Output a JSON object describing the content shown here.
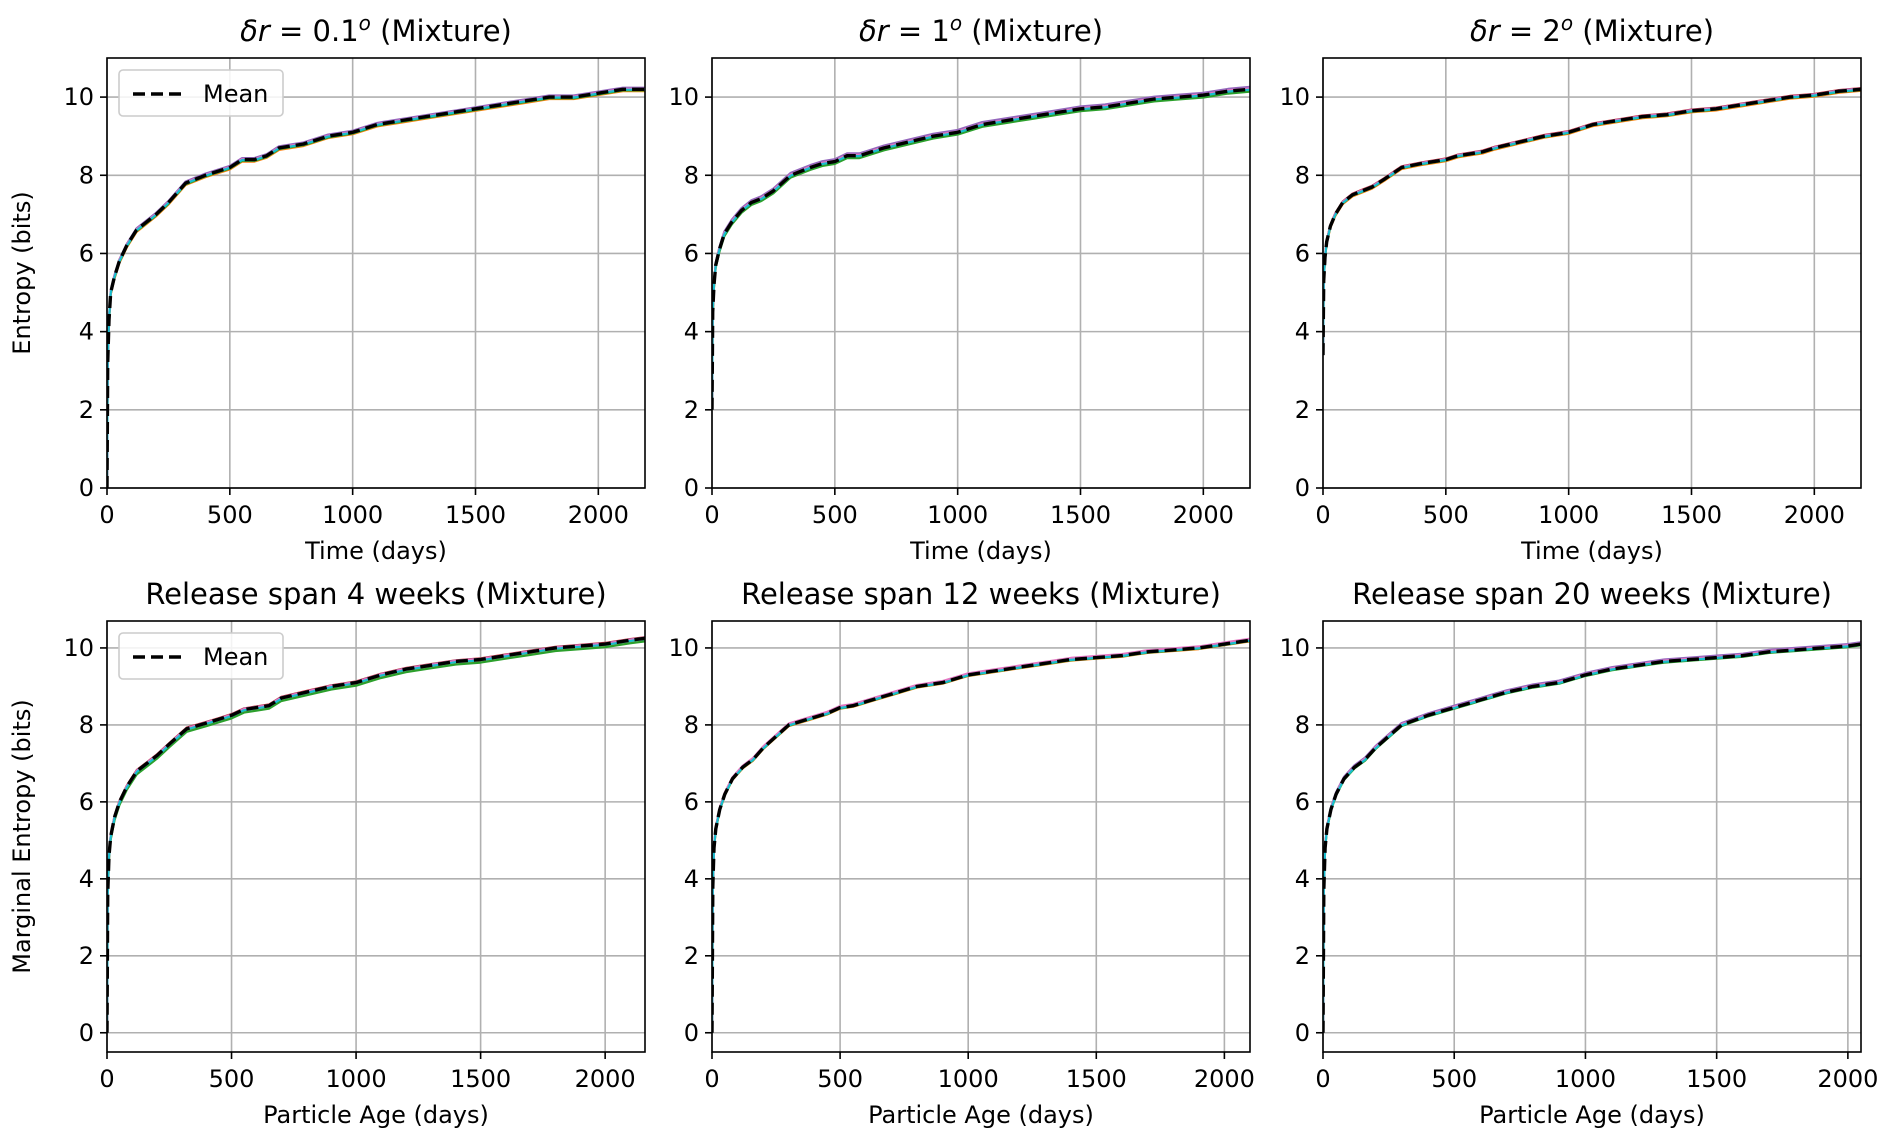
{
  "chart_data": [
    {
      "type": "line",
      "title_prefix": "δr",
      "title_suffix": " = 0.1",
      "title_sup": "o",
      "title_tail": " (Mixture)",
      "xlabel": "Time (days)",
      "ylabel": "Entropy (bits)",
      "xlim": [
        0,
        2190
      ],
      "ylim": [
        0,
        11
      ],
      "xticks": [
        0,
        500,
        1000,
        1500,
        2000
      ],
      "yticks": [
        0,
        2,
        4,
        6,
        8,
        10
      ],
      "grid": true,
      "legend": {
        "placement": "upper-left",
        "entries": [
          "Mean"
        ]
      },
      "series": [
        {
          "name": "Mean",
          "color": "#000000",
          "style": "dashed",
          "x": [
            0,
            3,
            8,
            15,
            30,
            50,
            80,
            120,
            160,
            200,
            250,
            320,
            400,
            450,
            500,
            550,
            600,
            650,
            700,
            800,
            900,
            1000,
            1100,
            1200,
            1300,
            1400,
            1500,
            1600,
            1700,
            1800,
            1900,
            2000,
            2100,
            2190
          ],
          "y": [
            0,
            3.2,
            4.3,
            5.0,
            5.4,
            5.8,
            6.2,
            6.6,
            6.8,
            7.0,
            7.3,
            7.8,
            8.0,
            8.1,
            8.2,
            8.4,
            8.4,
            8.5,
            8.7,
            8.8,
            9.0,
            9.1,
            9.3,
            9.4,
            9.5,
            9.6,
            9.7,
            9.8,
            9.9,
            10.0,
            10.0,
            10.1,
            10.2,
            10.2
          ]
        }
      ],
      "members": [
        {
          "color": "#ff7f0e",
          "offset": -0.05
        },
        {
          "color": "#2ca02c",
          "offset": -0.03
        },
        {
          "color": "#d62728",
          "offset": 0.02
        },
        {
          "color": "#9467bd",
          "offset": 0.04
        },
        {
          "color": "#e377c2",
          "offset": 0.01
        },
        {
          "color": "#17becf",
          "offset": -0.01
        }
      ]
    },
    {
      "type": "line",
      "title_prefix": "δr",
      "title_suffix": " = 1",
      "title_sup": "o",
      "title_tail": " (Mixture)",
      "xlabel": "Time (days)",
      "ylabel": "",
      "xlim": [
        0,
        2190
      ],
      "ylim": [
        0,
        11
      ],
      "xticks": [
        0,
        500,
        1000,
        1500,
        2000
      ],
      "yticks": [
        0,
        2,
        4,
        6,
        8,
        10
      ],
      "grid": true,
      "series": [
        {
          "name": "Mean",
          "color": "#000000",
          "style": "dashed",
          "x": [
            0,
            3,
            8,
            15,
            30,
            50,
            80,
            120,
            160,
            200,
            250,
            320,
            400,
            450,
            500,
            550,
            600,
            650,
            700,
            800,
            900,
            1000,
            1100,
            1200,
            1300,
            1400,
            1500,
            1600,
            1700,
            1800,
            1900,
            2000,
            2100,
            2190
          ],
          "y": [
            2.0,
            4.5,
            5.2,
            5.7,
            6.1,
            6.5,
            6.8,
            7.1,
            7.3,
            7.4,
            7.6,
            8.0,
            8.2,
            8.3,
            8.35,
            8.5,
            8.5,
            8.6,
            8.7,
            8.85,
            9.0,
            9.1,
            9.3,
            9.4,
            9.5,
            9.6,
            9.7,
            9.75,
            9.85,
            9.95,
            10.0,
            10.05,
            10.15,
            10.2
          ]
        }
      ],
      "members": [
        {
          "color": "#ff7f0e",
          "offset": -0.04
        },
        {
          "color": "#2ca02c",
          "offset": -0.06
        },
        {
          "color": "#d62728",
          "offset": 0.03
        },
        {
          "color": "#9467bd",
          "offset": 0.06
        },
        {
          "color": "#e377c2",
          "offset": 0.02
        },
        {
          "color": "#17becf",
          "offset": -0.01
        }
      ]
    },
    {
      "type": "line",
      "title_prefix": "δr",
      "title_suffix": " = 2",
      "title_sup": "o",
      "title_tail": " (Mixture)",
      "xlabel": "Time (days)",
      "ylabel": "",
      "xlim": [
        0,
        2190
      ],
      "ylim": [
        0,
        11
      ],
      "xticks": [
        0,
        500,
        1000,
        1500,
        2000
      ],
      "yticks": [
        0,
        2,
        4,
        6,
        8,
        10
      ],
      "grid": true,
      "series": [
        {
          "name": "Mean",
          "color": "#000000",
          "style": "dashed",
          "x": [
            0,
            3,
            8,
            15,
            30,
            50,
            80,
            120,
            160,
            200,
            250,
            320,
            400,
            450,
            500,
            550,
            600,
            650,
            700,
            800,
            900,
            1000,
            1100,
            1200,
            1300,
            1400,
            1500,
            1600,
            1700,
            1800,
            1900,
            2000,
            2100,
            2190
          ],
          "y": [
            3.4,
            5.3,
            5.9,
            6.3,
            6.7,
            7.0,
            7.3,
            7.5,
            7.6,
            7.7,
            7.9,
            8.2,
            8.3,
            8.35,
            8.4,
            8.5,
            8.55,
            8.6,
            8.7,
            8.85,
            9.0,
            9.1,
            9.3,
            9.4,
            9.5,
            9.55,
            9.65,
            9.7,
            9.8,
            9.9,
            10.0,
            10.05,
            10.15,
            10.2
          ]
        }
      ],
      "members": [
        {
          "color": "#ff7f0e",
          "offset": -0.04
        },
        {
          "color": "#2ca02c",
          "offset": -0.02
        },
        {
          "color": "#d62728",
          "offset": 0.03
        },
        {
          "color": "#9467bd",
          "offset": 0.02
        },
        {
          "color": "#e377c2",
          "offset": 0.01
        },
        {
          "color": "#17becf",
          "offset": -0.01
        }
      ]
    },
    {
      "type": "line",
      "title": "Release span 4 weeks (Mixture)",
      "xlabel": "Particle Age (days)",
      "ylabel": "Marginal Entropy (bits)",
      "xlim": [
        0,
        2160
      ],
      "ylim": [
        -0.5,
        10.7
      ],
      "xticks": [
        0,
        500,
        1000,
        1500,
        2000
      ],
      "yticks": [
        0,
        2,
        4,
        6,
        8,
        10
      ],
      "grid": true,
      "legend": {
        "placement": "upper-left",
        "entries": [
          "Mean"
        ]
      },
      "series": [
        {
          "name": "Mean",
          "color": "#000000",
          "style": "dashed",
          "x": [
            0,
            3,
            8,
            15,
            30,
            50,
            80,
            120,
            160,
            200,
            250,
            320,
            400,
            450,
            500,
            550,
            600,
            650,
            700,
            800,
            900,
            1000,
            1100,
            1200,
            1300,
            1400,
            1500,
            1600,
            1700,
            1800,
            1900,
            2000,
            2100,
            2160
          ],
          "y": [
            0,
            3.6,
            4.6,
            5.1,
            5.6,
            6.0,
            6.4,
            6.8,
            7.0,
            7.2,
            7.5,
            7.9,
            8.05,
            8.15,
            8.25,
            8.4,
            8.45,
            8.5,
            8.7,
            8.85,
            9.0,
            9.1,
            9.3,
            9.45,
            9.55,
            9.65,
            9.7,
            9.8,
            9.9,
            10.0,
            10.05,
            10.1,
            10.2,
            10.25
          ]
        }
      ],
      "members": [
        {
          "color": "#ff7f0e",
          "offset": -0.05
        },
        {
          "color": "#2ca02c",
          "offset": -0.08
        },
        {
          "color": "#d62728",
          "offset": 0.03
        },
        {
          "color": "#9467bd",
          "offset": 0.02
        },
        {
          "color": "#e377c2",
          "offset": 0.01
        },
        {
          "color": "#17becf",
          "offset": -0.02
        }
      ]
    },
    {
      "type": "line",
      "title": "Release span 12 weeks (Mixture)",
      "xlabel": "Particle Age (days)",
      "ylabel": "",
      "xlim": [
        0,
        2100
      ],
      "ylim": [
        -0.5,
        10.7
      ],
      "xticks": [
        0,
        500,
        1000,
        1500,
        2000
      ],
      "yticks": [
        0,
        2,
        4,
        6,
        8,
        10
      ],
      "grid": true,
      "series": [
        {
          "name": "Mean",
          "color": "#000000",
          "style": "dashed",
          "x": [
            0,
            3,
            8,
            15,
            30,
            50,
            80,
            120,
            160,
            200,
            250,
            300,
            400,
            450,
            500,
            550,
            600,
            650,
            700,
            800,
            900,
            1000,
            1100,
            1200,
            1300,
            1400,
            1500,
            1600,
            1700,
            1800,
            1900,
            2000,
            2100
          ],
          "y": [
            0,
            3.8,
            4.8,
            5.3,
            5.8,
            6.2,
            6.6,
            6.9,
            7.1,
            7.4,
            7.7,
            8.0,
            8.2,
            8.3,
            8.45,
            8.5,
            8.6,
            8.7,
            8.8,
            9.0,
            9.1,
            9.3,
            9.4,
            9.5,
            9.6,
            9.7,
            9.75,
            9.8,
            9.9,
            9.95,
            10.0,
            10.1,
            10.2
          ]
        }
      ],
      "members": [
        {
          "color": "#ff7f0e",
          "offset": -0.03
        },
        {
          "color": "#2ca02c",
          "offset": -0.02
        },
        {
          "color": "#d62728",
          "offset": 0.03
        },
        {
          "color": "#9467bd",
          "offset": 0.02
        },
        {
          "color": "#e377c2",
          "offset": 0.04
        },
        {
          "color": "#17becf",
          "offset": -0.01
        }
      ]
    },
    {
      "type": "line",
      "title": "Release span 20 weeks (Mixture)",
      "xlabel": "Particle Age (days)",
      "ylabel": "",
      "xlim": [
        0,
        2050
      ],
      "ylim": [
        -0.5,
        10.7
      ],
      "xticks": [
        0,
        500,
        1000,
        1500,
        2000
      ],
      "yticks": [
        0,
        2,
        4,
        6,
        8,
        10
      ],
      "grid": true,
      "series": [
        {
          "name": "Mean",
          "color": "#000000",
          "style": "dashed",
          "x": [
            0,
            3,
            8,
            15,
            30,
            50,
            80,
            120,
            160,
            200,
            250,
            300,
            400,
            450,
            500,
            550,
            600,
            650,
            700,
            800,
            900,
            1000,
            1100,
            1200,
            1300,
            1400,
            1500,
            1600,
            1700,
            1800,
            1900,
            2000,
            2050
          ],
          "y": [
            0,
            3.7,
            4.8,
            5.3,
            5.8,
            6.2,
            6.6,
            6.9,
            7.1,
            7.4,
            7.7,
            8.0,
            8.25,
            8.35,
            8.45,
            8.55,
            8.65,
            8.75,
            8.85,
            9.0,
            9.1,
            9.3,
            9.45,
            9.55,
            9.65,
            9.7,
            9.75,
            9.8,
            9.9,
            9.95,
            10.0,
            10.05,
            10.1
          ]
        }
      ],
      "members": [
        {
          "color": "#ff7f0e",
          "offset": -0.02
        },
        {
          "color": "#2ca02c",
          "offset": -0.03
        },
        {
          "color": "#d62728",
          "offset": 0.03
        },
        {
          "color": "#9467bd",
          "offset": 0.05
        },
        {
          "color": "#e377c2",
          "offset": 0.02
        },
        {
          "color": "#17becf",
          "offset": -0.01
        }
      ]
    }
  ]
}
